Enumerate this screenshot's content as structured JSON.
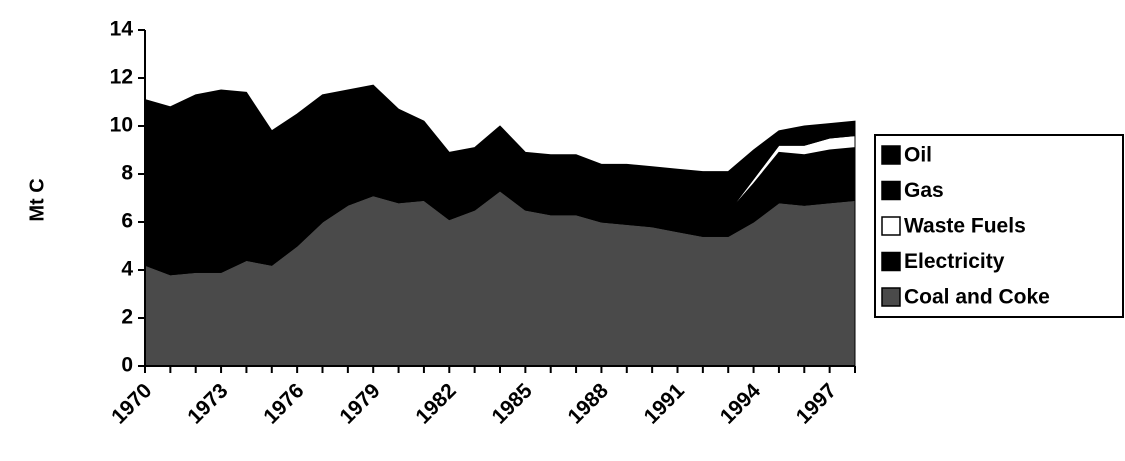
{
  "chart_data": {
    "type": "stacked_area",
    "y_label": "Mt C",
    "categories": [
      "1970",
      null,
      null,
      "1973",
      null,
      null,
      "1976",
      null,
      null,
      "1979",
      null,
      null,
      "1982",
      null,
      null,
      "1985",
      null,
      null,
      "1988",
      null,
      null,
      "1991",
      null,
      null,
      "1994",
      null,
      null,
      "1997",
      null
    ],
    "series": [
      {
        "name": "Coal and Coke",
        "color": "#4a4a4a",
        "values": [
          4.2,
          3.8,
          3.9,
          3.9,
          4.4,
          4.2,
          5.0,
          6.0,
          6.7,
          7.1,
          6.8,
          6.9,
          6.1,
          6.5,
          7.3,
          6.5,
          6.3,
          6.3,
          6.0,
          5.9,
          5.8,
          5.6,
          5.4,
          5.4,
          6.0,
          6.8,
          6.7,
          6.8,
          6.9
        ]
      },
      {
        "name": "Electricity",
        "color": "#000000",
        "values": [
          1.0,
          1.0,
          1.0,
          1.0,
          1.0,
          1.0,
          1.0,
          1.0,
          1.0,
          1.0,
          1.0,
          1.0,
          1.0,
          1.0,
          1.0,
          1.0,
          1.0,
          1.0,
          1.0,
          1.0,
          1.0,
          1.0,
          1.0,
          1.0,
          1.6,
          2.1,
          2.1,
          2.2,
          2.2
        ]
      },
      {
        "name": "Waste Fuels",
        "color": "#ffffff",
        "values": [
          0,
          0,
          0,
          0,
          0,
          0,
          0,
          0,
          0,
          0,
          0,
          0,
          0,
          0,
          0,
          0,
          0,
          0,
          0,
          0,
          0,
          0,
          0,
          0,
          0.2,
          0.3,
          0.4,
          0.5,
          0.5
        ]
      },
      {
        "name": "Gas",
        "color": "#000000",
        "values": [
          1.0,
          1.0,
          1.0,
          1.0,
          1.0,
          1.0,
          1.0,
          1.0,
          1.0,
          1.0,
          1.0,
          1.0,
          1.0,
          1.0,
          1.0,
          1.0,
          1.0,
          1.0,
          1.0,
          1.0,
          1.0,
          1.0,
          1.0,
          1.0,
          0.6,
          0.3,
          0.4,
          0.3,
          0.3
        ]
      },
      {
        "name": "Oil",
        "color": "#000000",
        "values": [
          4.9,
          5.0,
          5.4,
          5.6,
          5.0,
          3.6,
          3.5,
          3.3,
          2.8,
          2.6,
          1.9,
          1.3,
          0.8,
          0.6,
          0.7,
          0.4,
          0.5,
          0.5,
          0.4,
          0.5,
          0.5,
          0.6,
          0.7,
          0.7,
          0.6,
          0.3,
          0.4,
          0.3,
          0.3
        ]
      }
    ],
    "ylim": [
      0,
      14
    ],
    "yticks": [
      0,
      2,
      4,
      6,
      8,
      10,
      12,
      14
    ]
  }
}
